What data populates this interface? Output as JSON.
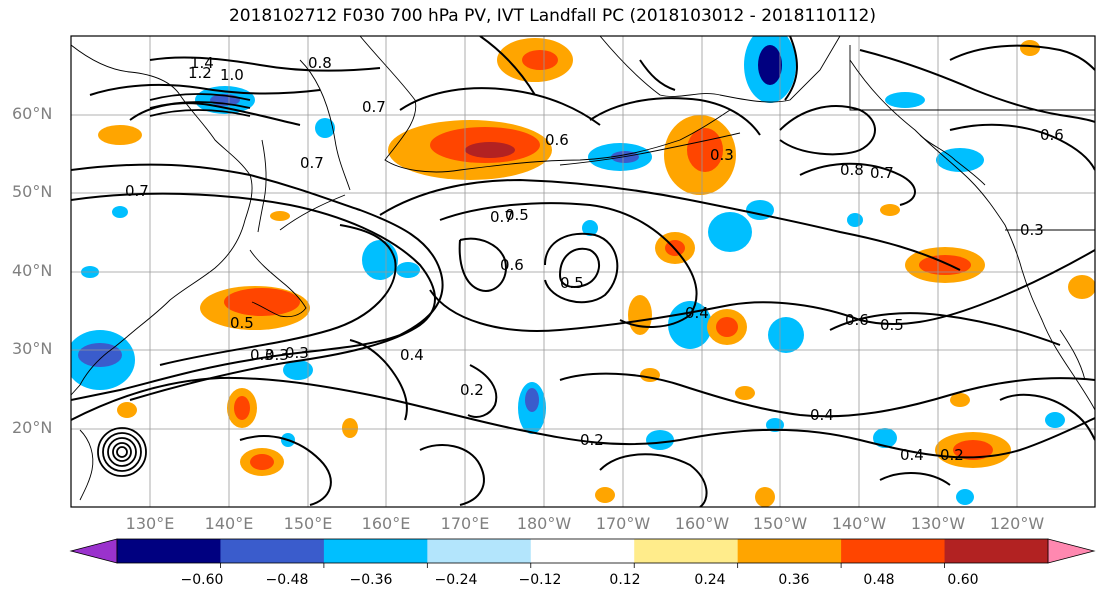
{
  "figure": {
    "title": "2018102712 F030 700 hPa PV, IVT Landfall PC (2018103012 - 2018110112)"
  },
  "map": {
    "projection": "equirectangular",
    "lon_range": [
      120,
      250
    ],
    "lat_range": [
      10,
      70
    ],
    "lat_labels": [
      "60°N",
      "50°N",
      "40°N",
      "30°N",
      "20°N"
    ],
    "lon_labels": [
      "130°E",
      "140°E",
      "150°E",
      "160°E",
      "170°E",
      "180°W",
      "170°W",
      "160°W",
      "150°W",
      "140°W",
      "130°W",
      "120°W"
    ],
    "gridlines": true,
    "contour_labels": [
      "1.4",
      "1.2",
      "1.0",
      "0.8",
      "0.7",
      "0.7",
      "0.7",
      "0.7",
      "0.6",
      "0.6",
      "0.5",
      "0.5",
      "0.5",
      "0.4",
      "0.3",
      "0.3",
      "0.3",
      "0.2",
      "0.2",
      "0.3",
      "0.4",
      "0.4",
      "0.4",
      "0.2",
      "0.5",
      "0.6",
      "0.8",
      "0.7",
      "0.6",
      "0.3"
    ]
  },
  "colorbar": {
    "ticks": [
      "−0.60",
      "−0.48",
      "−0.36",
      "−0.24",
      "−0.12",
      "0.12",
      "0.24",
      "0.36",
      "0.48",
      "0.60"
    ],
    "colors": [
      "#9a32cd",
      "#000080",
      "#3a5ccc",
      "#00bfff",
      "#b3e5fc",
      "#ffffff",
      "#ffec8b",
      "#ffa500",
      "#ff4500",
      "#b22222",
      "#ff88b0"
    ],
    "extend": "both"
  }
}
